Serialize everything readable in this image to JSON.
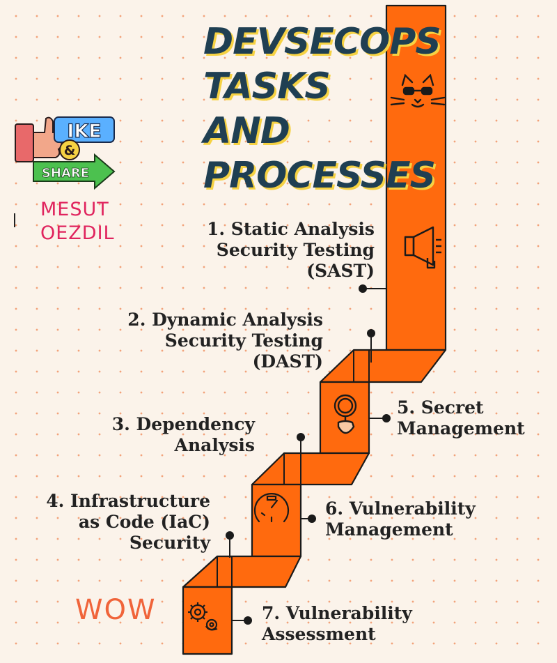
{
  "title": {
    "lines": [
      "DEVSECOPS",
      "TASKS",
      "AND",
      "PROCESSES"
    ]
  },
  "steps": [
    {
      "lines": [
        "1. Static Analysis",
        "Security Testing",
        "(SAST)"
      ]
    },
    {
      "lines": [
        "2. Dynamic Analysis",
        "Security Testing",
        "(DAST)"
      ]
    },
    {
      "lines": [
        "3. Dependency",
        "Analysis"
      ]
    },
    {
      "lines": [
        "4. Infrastructure",
        "as Code (IaC)",
        "Security"
      ]
    },
    {
      "lines": [
        "5. Secret",
        "Management"
      ]
    },
    {
      "lines": [
        "6. Vulnerability",
        "Management"
      ]
    },
    {
      "lines": [
        "7. Vulnerability",
        "Assessment"
      ]
    }
  ],
  "logo": {
    "word1": "IKE",
    "amp": "&",
    "word2": "SHARE"
  },
  "brand": {
    "lines": [
      "MESUT",
      "OEZDIL"
    ]
  },
  "wow": "WOW",
  "colors": {
    "ribbon": "#ff6a0e",
    "ribbon_dark": "#c44a04",
    "title": "#1f3f52",
    "title_shadow": "#f6d243",
    "brand": "#e0245e"
  },
  "icons": [
    "cat-face-icon",
    "megaphone-icon",
    "magnifier-icon",
    "stopwatch-icon",
    "gears-icon"
  ]
}
